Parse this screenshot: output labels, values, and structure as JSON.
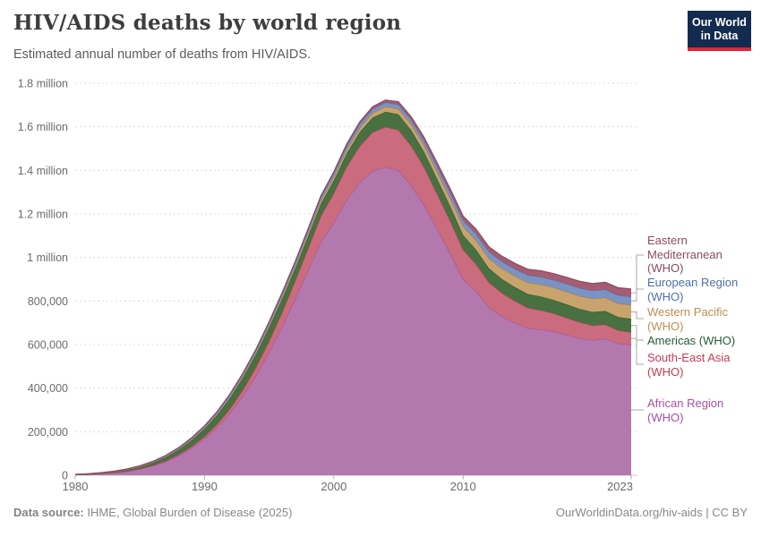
{
  "header": {
    "title": "HIV/AIDS deaths by world region",
    "subtitle": "Estimated annual number of deaths from HIV/AIDS.",
    "logo": {
      "line1": "Our World",
      "line2": "in Data"
    }
  },
  "chart_data": {
    "type": "area",
    "stacked": true,
    "title": "HIV/AIDS deaths by world region",
    "unit": "deaths per year",
    "values_in": "thousands of deaths",
    "grid": "dashed horizontal gridlines",
    "legend_position": "right, connected by leader lines",
    "x": [
      1980,
      1981,
      1982,
      1983,
      1984,
      1985,
      1986,
      1987,
      1988,
      1989,
      1990,
      1991,
      1992,
      1993,
      1994,
      1995,
      1996,
      1997,
      1998,
      1999,
      2000,
      2001,
      2002,
      2003,
      2004,
      2005,
      2006,
      2007,
      2008,
      2009,
      2010,
      2011,
      2012,
      2013,
      2014,
      2015,
      2016,
      2017,
      2018,
      2019,
      2020,
      2021,
      2022,
      2023
    ],
    "x_ticks": [
      1980,
      1990,
      2000,
      2010,
      2023
    ],
    "ylim": [
      0,
      1800
    ],
    "y_ticks": [
      0,
      200,
      400,
      600,
      800,
      1000,
      1200,
      1400,
      1600,
      1800
    ],
    "y_tick_labels": [
      "0",
      "200,000",
      "400,000",
      "600,000",
      "800,000",
      "1 million",
      "1.2 million",
      "1.4 million",
      "1.6 million",
      "1.8 million"
    ],
    "series": [
      {
        "key": "african",
        "name": "African Region (WHO)",
        "color": "#a2559c",
        "fill": "#b378ae",
        "values": [
          2,
          4,
          7,
          11,
          18,
          28,
          43,
          63,
          90,
          125,
          168,
          222,
          288,
          367,
          460,
          566,
          683,
          809,
          940,
          1072,
          1160,
          1265,
          1345,
          1398,
          1415,
          1400,
          1330,
          1240,
          1130,
          1020,
          900,
          845,
          770,
          730,
          700,
          675,
          670,
          660,
          645,
          630,
          620,
          628,
          605,
          600
        ]
      },
      {
        "key": "south_east_asia",
        "name": "South-East Asia (WHO)",
        "color": "#bc4358",
        "fill": "#ca6c7e",
        "values": [
          0.2,
          0.3,
          0.5,
          0.8,
          1,
          1.5,
          2,
          3,
          5,
          7,
          10,
          14,
          20,
          28,
          38,
          50,
          65,
          82,
          100,
          118,
          135,
          152,
          166,
          177,
          184,
          186,
          182,
          173,
          161,
          148,
          136,
          125,
          115,
          107,
          100,
          94,
          88,
          83,
          78,
          73,
          68,
          64,
          60,
          57
        ]
      },
      {
        "key": "americas",
        "name": "Americas (WHO)",
        "color": "#2c5e34",
        "fill": "#497040",
        "values": [
          1,
          1.5,
          2.5,
          4,
          6,
          9,
          13,
          17,
          22,
          28,
          34,
          41,
          48,
          54,
          59,
          62,
          60,
          56,
          55,
          56,
          58,
          61,
          64,
          67,
          70,
          71,
          71,
          70,
          69,
          68,
          67,
          66,
          65,
          64,
          64,
          63,
          63,
          62,
          62,
          61,
          62,
          62,
          61,
          61
        ]
      },
      {
        "key": "western_pacific",
        "name": "Western Pacific (WHO)",
        "color": "#a87d43",
        "fill": "#c9a36d",
        "values": [
          0.2,
          0.3,
          0.4,
          0.5,
          0.7,
          1,
          1.3,
          1.7,
          2.2,
          3,
          4,
          5,
          6,
          7,
          8,
          9,
          11,
          12,
          14,
          15,
          16,
          18,
          20,
          22,
          24,
          26,
          28,
          31,
          34,
          37,
          40,
          43,
          46,
          49,
          51,
          53,
          55,
          57,
          58,
          60,
          61,
          62,
          63,
          64
        ]
      },
      {
        "key": "european",
        "name": "European Region (WHO)",
        "color": "#5472ab",
        "fill": "#7b93c3",
        "values": [
          0.5,
          0.8,
          1.2,
          1.8,
          2.5,
          3.3,
          4.2,
          5.2,
          6.3,
          7.5,
          8.7,
          10,
          11,
          12,
          13,
          14,
          15,
          15.5,
          16,
          16.5,
          17,
          17.5,
          18,
          18.5,
          19,
          20,
          21,
          22,
          24,
          26,
          28,
          30,
          31,
          32,
          33,
          34,
          35,
          35,
          36,
          36,
          37,
          37,
          38,
          38
        ]
      },
      {
        "key": "eastern_mediterranean",
        "name": "Eastern Mediterranean (WHO)",
        "color": "#8d4b60",
        "fill": "#a45d72",
        "values": [
          0.1,
          0.15,
          0.2,
          0.3,
          0.4,
          0.5,
          0.7,
          0.9,
          1.2,
          1.5,
          2,
          2.4,
          2.8,
          3.2,
          3.6,
          4,
          4.5,
          5,
          5.5,
          6,
          7,
          8,
          9,
          10,
          11,
          12,
          13,
          14,
          16,
          17,
          19,
          21,
          22,
          24,
          25,
          27,
          28,
          29,
          30,
          31,
          32,
          33,
          34,
          35
        ]
      }
    ]
  },
  "legend": {
    "items": [
      {
        "label": "Eastern Mediterranean (WHO)",
        "color": "#8d4b60"
      },
      {
        "label": "European Region (WHO)",
        "color": "#4f6ea9"
      },
      {
        "label": "Western Pacific (WHO)",
        "color": "#bf8e4d"
      },
      {
        "label": "Americas (WHO)",
        "color": "#215c34"
      },
      {
        "label": "South-East Asia (WHO)",
        "color": "#c73a55"
      },
      {
        "label": "African Region (WHO)",
        "color": "#a84fa3"
      }
    ]
  },
  "footer": {
    "datasource_label": "Data source:",
    "datasource_value": " IHME, Global Burden of Disease (2025)",
    "license": "OurWorldinData.org/hiv-aids | CC BY"
  }
}
